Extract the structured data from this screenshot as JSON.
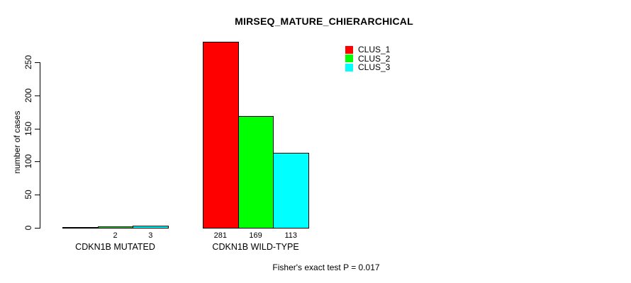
{
  "chart_data": {
    "type": "bar",
    "title": "MIRSEQ_MATURE_CHIERARCHICAL",
    "ylabel": "number of cases",
    "xlabel": "",
    "ylim": [
      0,
      250
    ],
    "yticks": [
      0,
      50,
      100,
      150,
      200,
      250
    ],
    "grid": false,
    "legend_position": "top-right",
    "bar_outline_color": "#000000",
    "categories": [
      "CDKN1B MUTATED",
      "CDKN1B WILD-TYPE"
    ],
    "series": [
      {
        "name": "CLUS_1",
        "color": "#ff0000",
        "values": [
          0,
          281
        ]
      },
      {
        "name": "CLUS_2",
        "color": "#00ff00",
        "values": [
          2,
          169
        ]
      },
      {
        "name": "CLUS_3",
        "color": "#00ffff",
        "values": [
          3,
          113
        ]
      }
    ],
    "bar_labels": [
      [
        "",
        "2",
        "3"
      ],
      [
        "281",
        "169",
        "113"
      ]
    ],
    "annotation": "Fisher's exact test P = 0.017"
  }
}
